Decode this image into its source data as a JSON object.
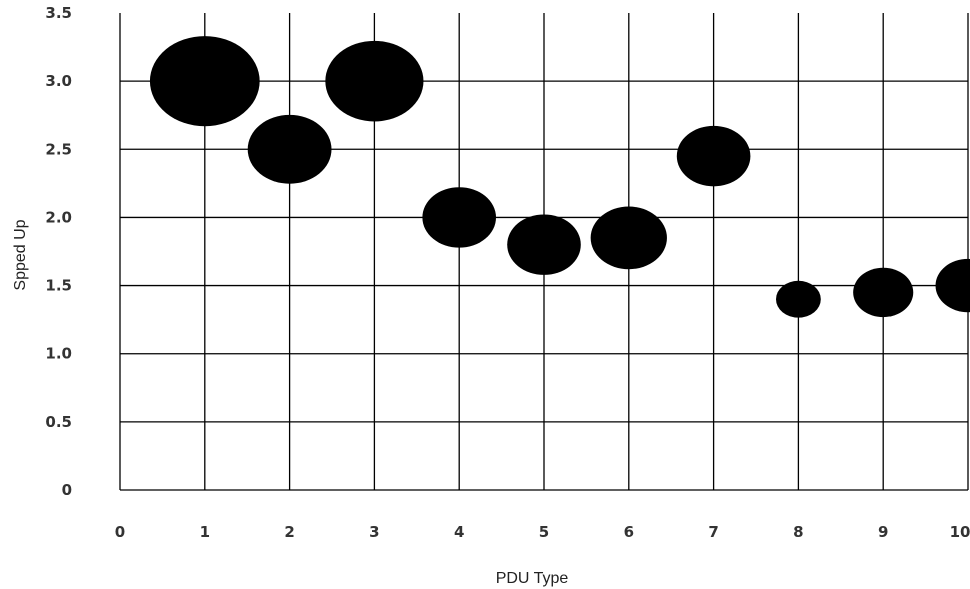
{
  "chart_data": {
    "type": "scatter",
    "title": "",
    "xlabel": "PDU Type",
    "ylabel": "Spped Up",
    "xlim": [
      0,
      10
    ],
    "ylim": [
      0,
      3.5
    ],
    "x_ticks": [
      "0",
      "1",
      "2",
      "3",
      "4",
      "5",
      "6",
      "7",
      "8",
      "9",
      "10"
    ],
    "y_ticks": [
      "0",
      "0.5",
      "1.0",
      "1.5",
      "2.0",
      "2.5",
      "3.0",
      "3.5"
    ],
    "grid": true,
    "legend": "none",
    "marker_color": "#000000",
    "points": [
      {
        "x": 1,
        "y": 3.0,
        "size": 6
      },
      {
        "x": 2,
        "y": 2.5,
        "size": 3.5
      },
      {
        "x": 3,
        "y": 3.0,
        "size": 4.8
      },
      {
        "x": 4,
        "y": 2.0,
        "size": 2.7
      },
      {
        "x": 5,
        "y": 1.8,
        "size": 2.7
      },
      {
        "x": 6,
        "y": 1.85,
        "size": 2.9
      },
      {
        "x": 7,
        "y": 2.45,
        "size": 2.7
      },
      {
        "x": 8,
        "y": 1.4,
        "size": 1
      },
      {
        "x": 9,
        "y": 1.45,
        "size": 1.8
      },
      {
        "x": 10,
        "y": 1.5,
        "size": 2.1
      }
    ]
  }
}
